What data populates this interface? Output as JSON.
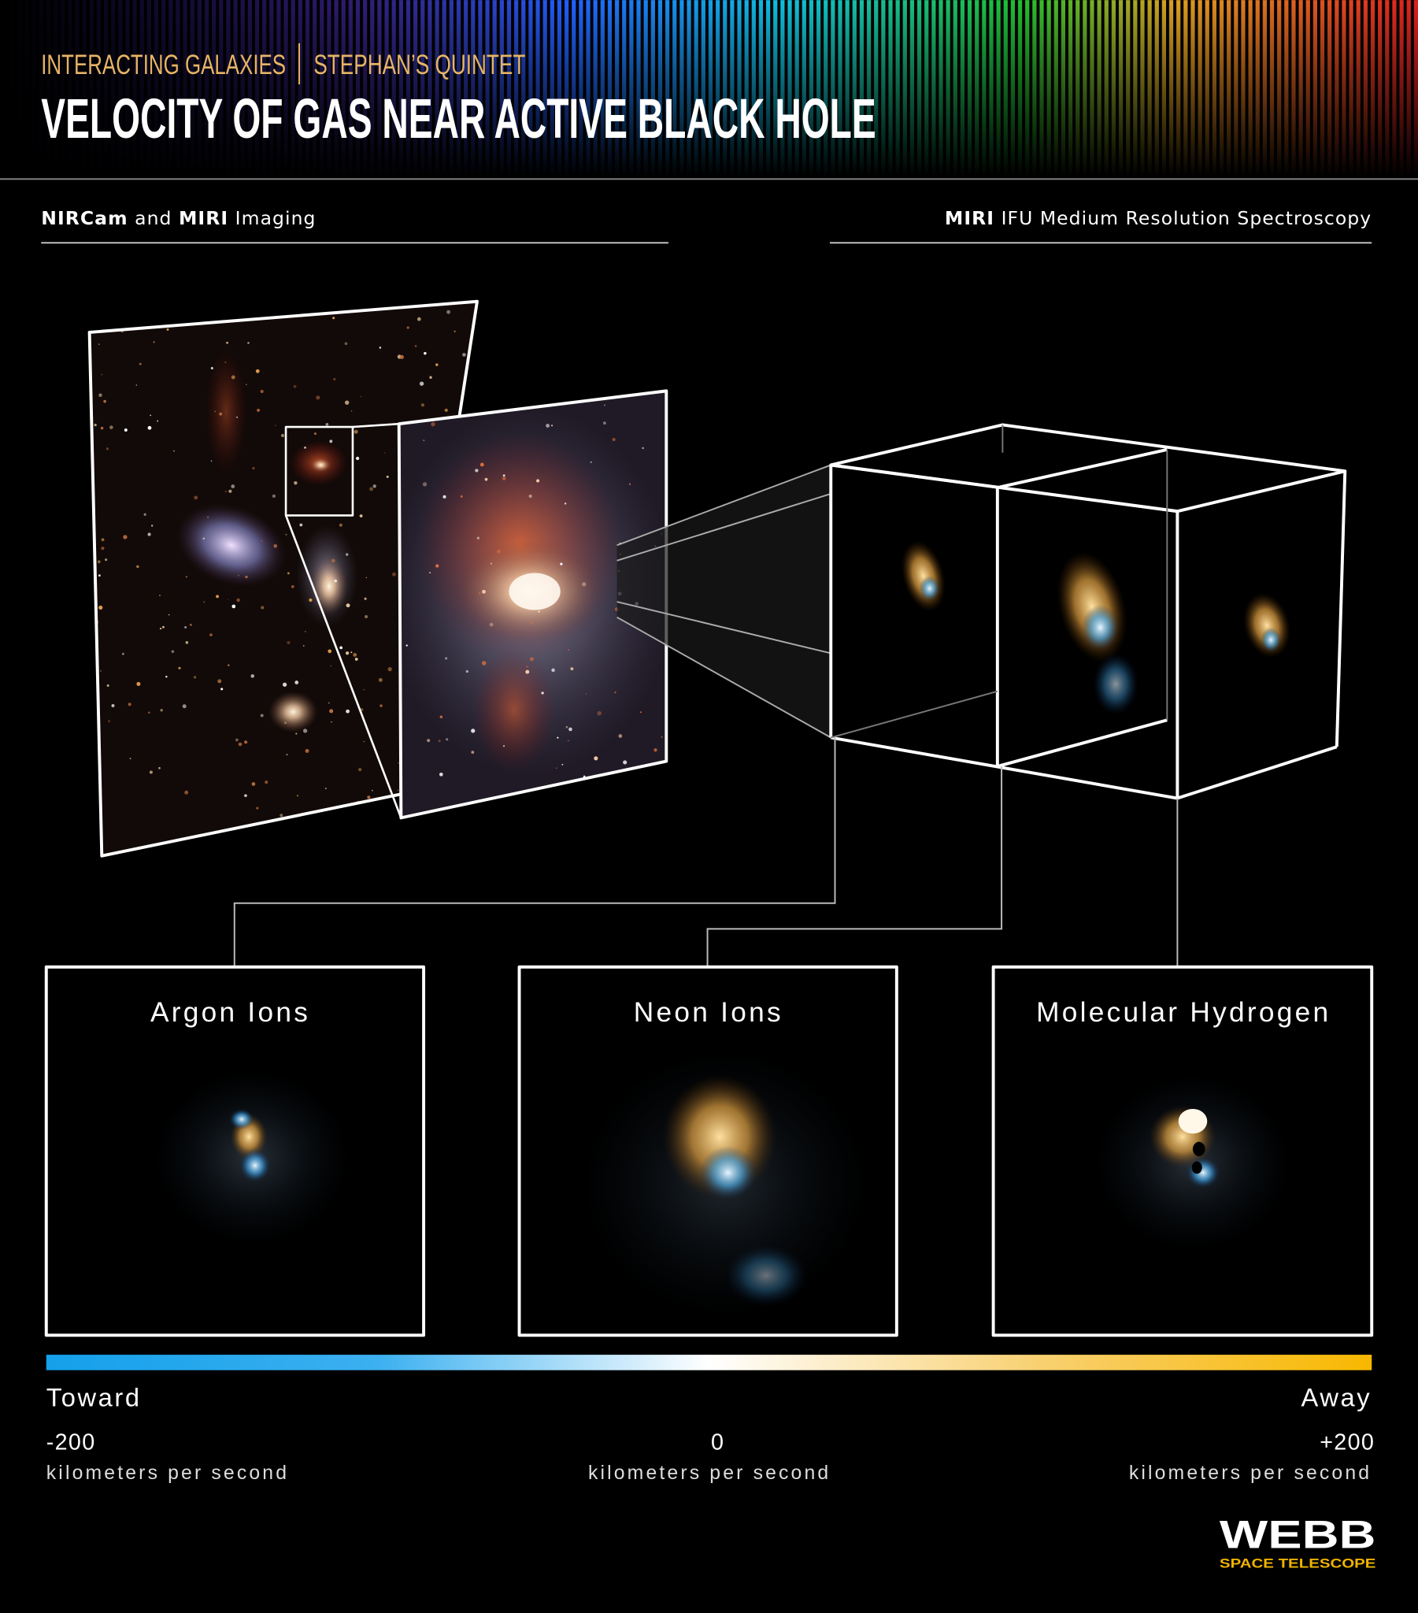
{
  "header": {
    "kicker": "INTERACTING GALAXIES",
    "subject": "STEPHAN’S QUINTET",
    "title": "VELOCITY OF GAS NEAR ACTIVE BLACK HOLE"
  },
  "sections": {
    "imaging": [
      "NIRCam",
      "and",
      "MIRI",
      "Imaging"
    ],
    "spectroscopy": [
      "MIRI",
      "IFU Medium Resolution Spectroscopy"
    ]
  },
  "panels": [
    {
      "label": "Argon Ions"
    },
    {
      "label": "Neon Ions"
    },
    {
      "label": "Molecular Hydrogen"
    }
  ],
  "scale": {
    "left": {
      "label": "Toward",
      "value": "-200",
      "unit": "kilometers per second"
    },
    "center": {
      "value": "0",
      "unit": "kilometers per second"
    },
    "right": {
      "label": "Away",
      "value": "+200",
      "unit": "kilometers per second"
    }
  },
  "logo": {
    "name": "WEBB",
    "subtitle": "SPACE TELESCOPE"
  }
}
